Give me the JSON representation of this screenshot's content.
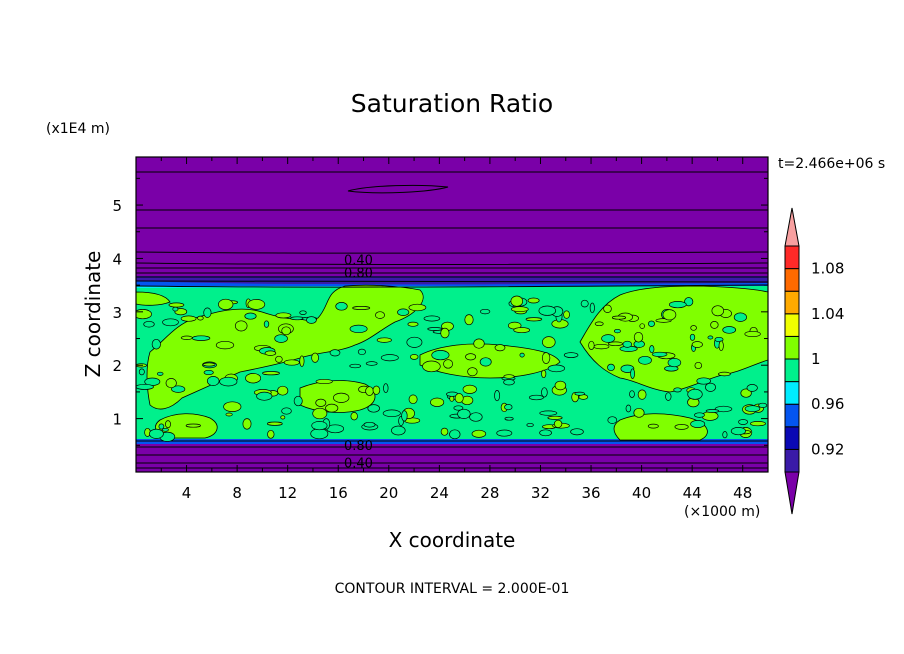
{
  "chart_data": {
    "type": "contour",
    "title": "Saturation Ratio",
    "xlabel": "X coordinate",
    "ylabel": "Z coordinate",
    "x_unit": "(×1000 m)",
    "y_unit": "(x1E4 m)",
    "x_ticks": [
      "4",
      "8",
      "12",
      "16",
      "20",
      "24",
      "28",
      "32",
      "36",
      "40",
      "44",
      "48"
    ],
    "y_ticks": [
      "1",
      "2",
      "3",
      "4",
      "5"
    ],
    "xlim": [
      0,
      50
    ],
    "ylim": [
      0,
      5.9
    ],
    "time_label": "t=2.466e+06 s",
    "footer": "CONTOUR INTERVAL = 2.000E-01",
    "contour_labels": [
      {
        "text": "0.40",
        "x": 17.6,
        "z": 3.92
      },
      {
        "text": "0.80",
        "x": 17.6,
        "z": 3.68
      },
      {
        "text": "0.80",
        "x": 17.6,
        "z": 0.45
      },
      {
        "text": "0.40",
        "x": 17.6,
        "z": 0.12
      }
    ],
    "levels": [
      0.9,
      0.92,
      0.94,
      0.96,
      0.98,
      1.0,
      1.02,
      1.04,
      1.06,
      1.08,
      1.1
    ],
    "colorbar_labels": [
      "0.92",
      "0.96",
      "1",
      "1.04",
      "1.08"
    ],
    "colors": [
      "#7a00a8",
      "#3a1aa8",
      "#0a08b4",
      "#0455f0",
      "#00ecff",
      "#00f08c",
      "#80ff00",
      "#f0ff00",
      "#ffaa00",
      "#ff6a00",
      "#ff2a28",
      "#f8a0a0"
    ]
  }
}
